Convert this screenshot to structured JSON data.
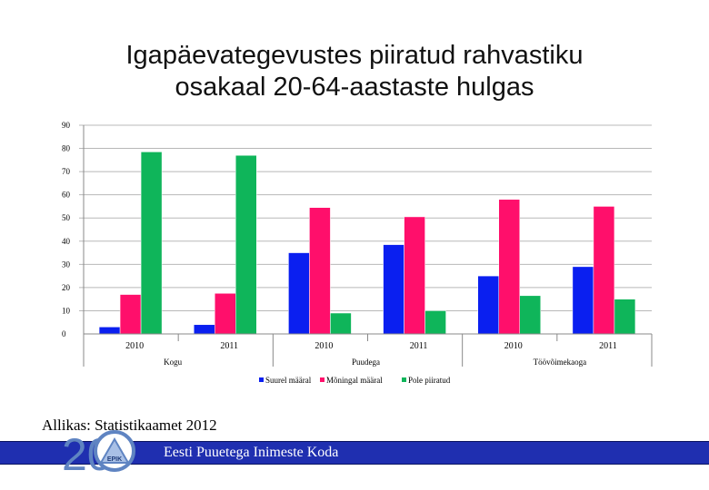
{
  "title_line1": "Igapäevategevustes piiratud rahvastiku",
  "title_line2": "osakaal 20-64-aastaste hulgas",
  "source": "Allikas: Statistikaamet 2012",
  "footer_text": "Eesti Puuetega Inimeste Koda",
  "logo": {
    "number": "20",
    "abbr": "EPIK"
  },
  "colors": {
    "series1": "#0a1ff0",
    "series2": "#ff0f6b",
    "series3": "#0fb55a",
    "footer": "#1f2fb0",
    "grid": "#b8b8b8"
  },
  "chart_data": {
    "type": "bar",
    "ylim": [
      0,
      90
    ],
    "yticks": [
      0,
      10,
      20,
      30,
      40,
      50,
      60,
      70,
      80,
      90
    ],
    "grid": true,
    "legend_position": "bottom",
    "groups": [
      "Kogu",
      "Puudega",
      "Töövõimekaoga"
    ],
    "categories": [
      "2010",
      "2011",
      "2010",
      "2011",
      "2010",
      "2011"
    ],
    "category_groups": [
      0,
      0,
      1,
      1,
      2,
      2
    ],
    "series": [
      {
        "name": "Suurel määral",
        "values": [
          3,
          4,
          35,
          38.5,
          25,
          29
        ]
      },
      {
        "name": "Mõningal määral",
        "values": [
          17,
          17.5,
          54.5,
          50.5,
          58,
          55
        ]
      },
      {
        "name": "Pole piiratud",
        "values": [
          78.5,
          77,
          9,
          10,
          16.5,
          15
        ]
      }
    ]
  }
}
